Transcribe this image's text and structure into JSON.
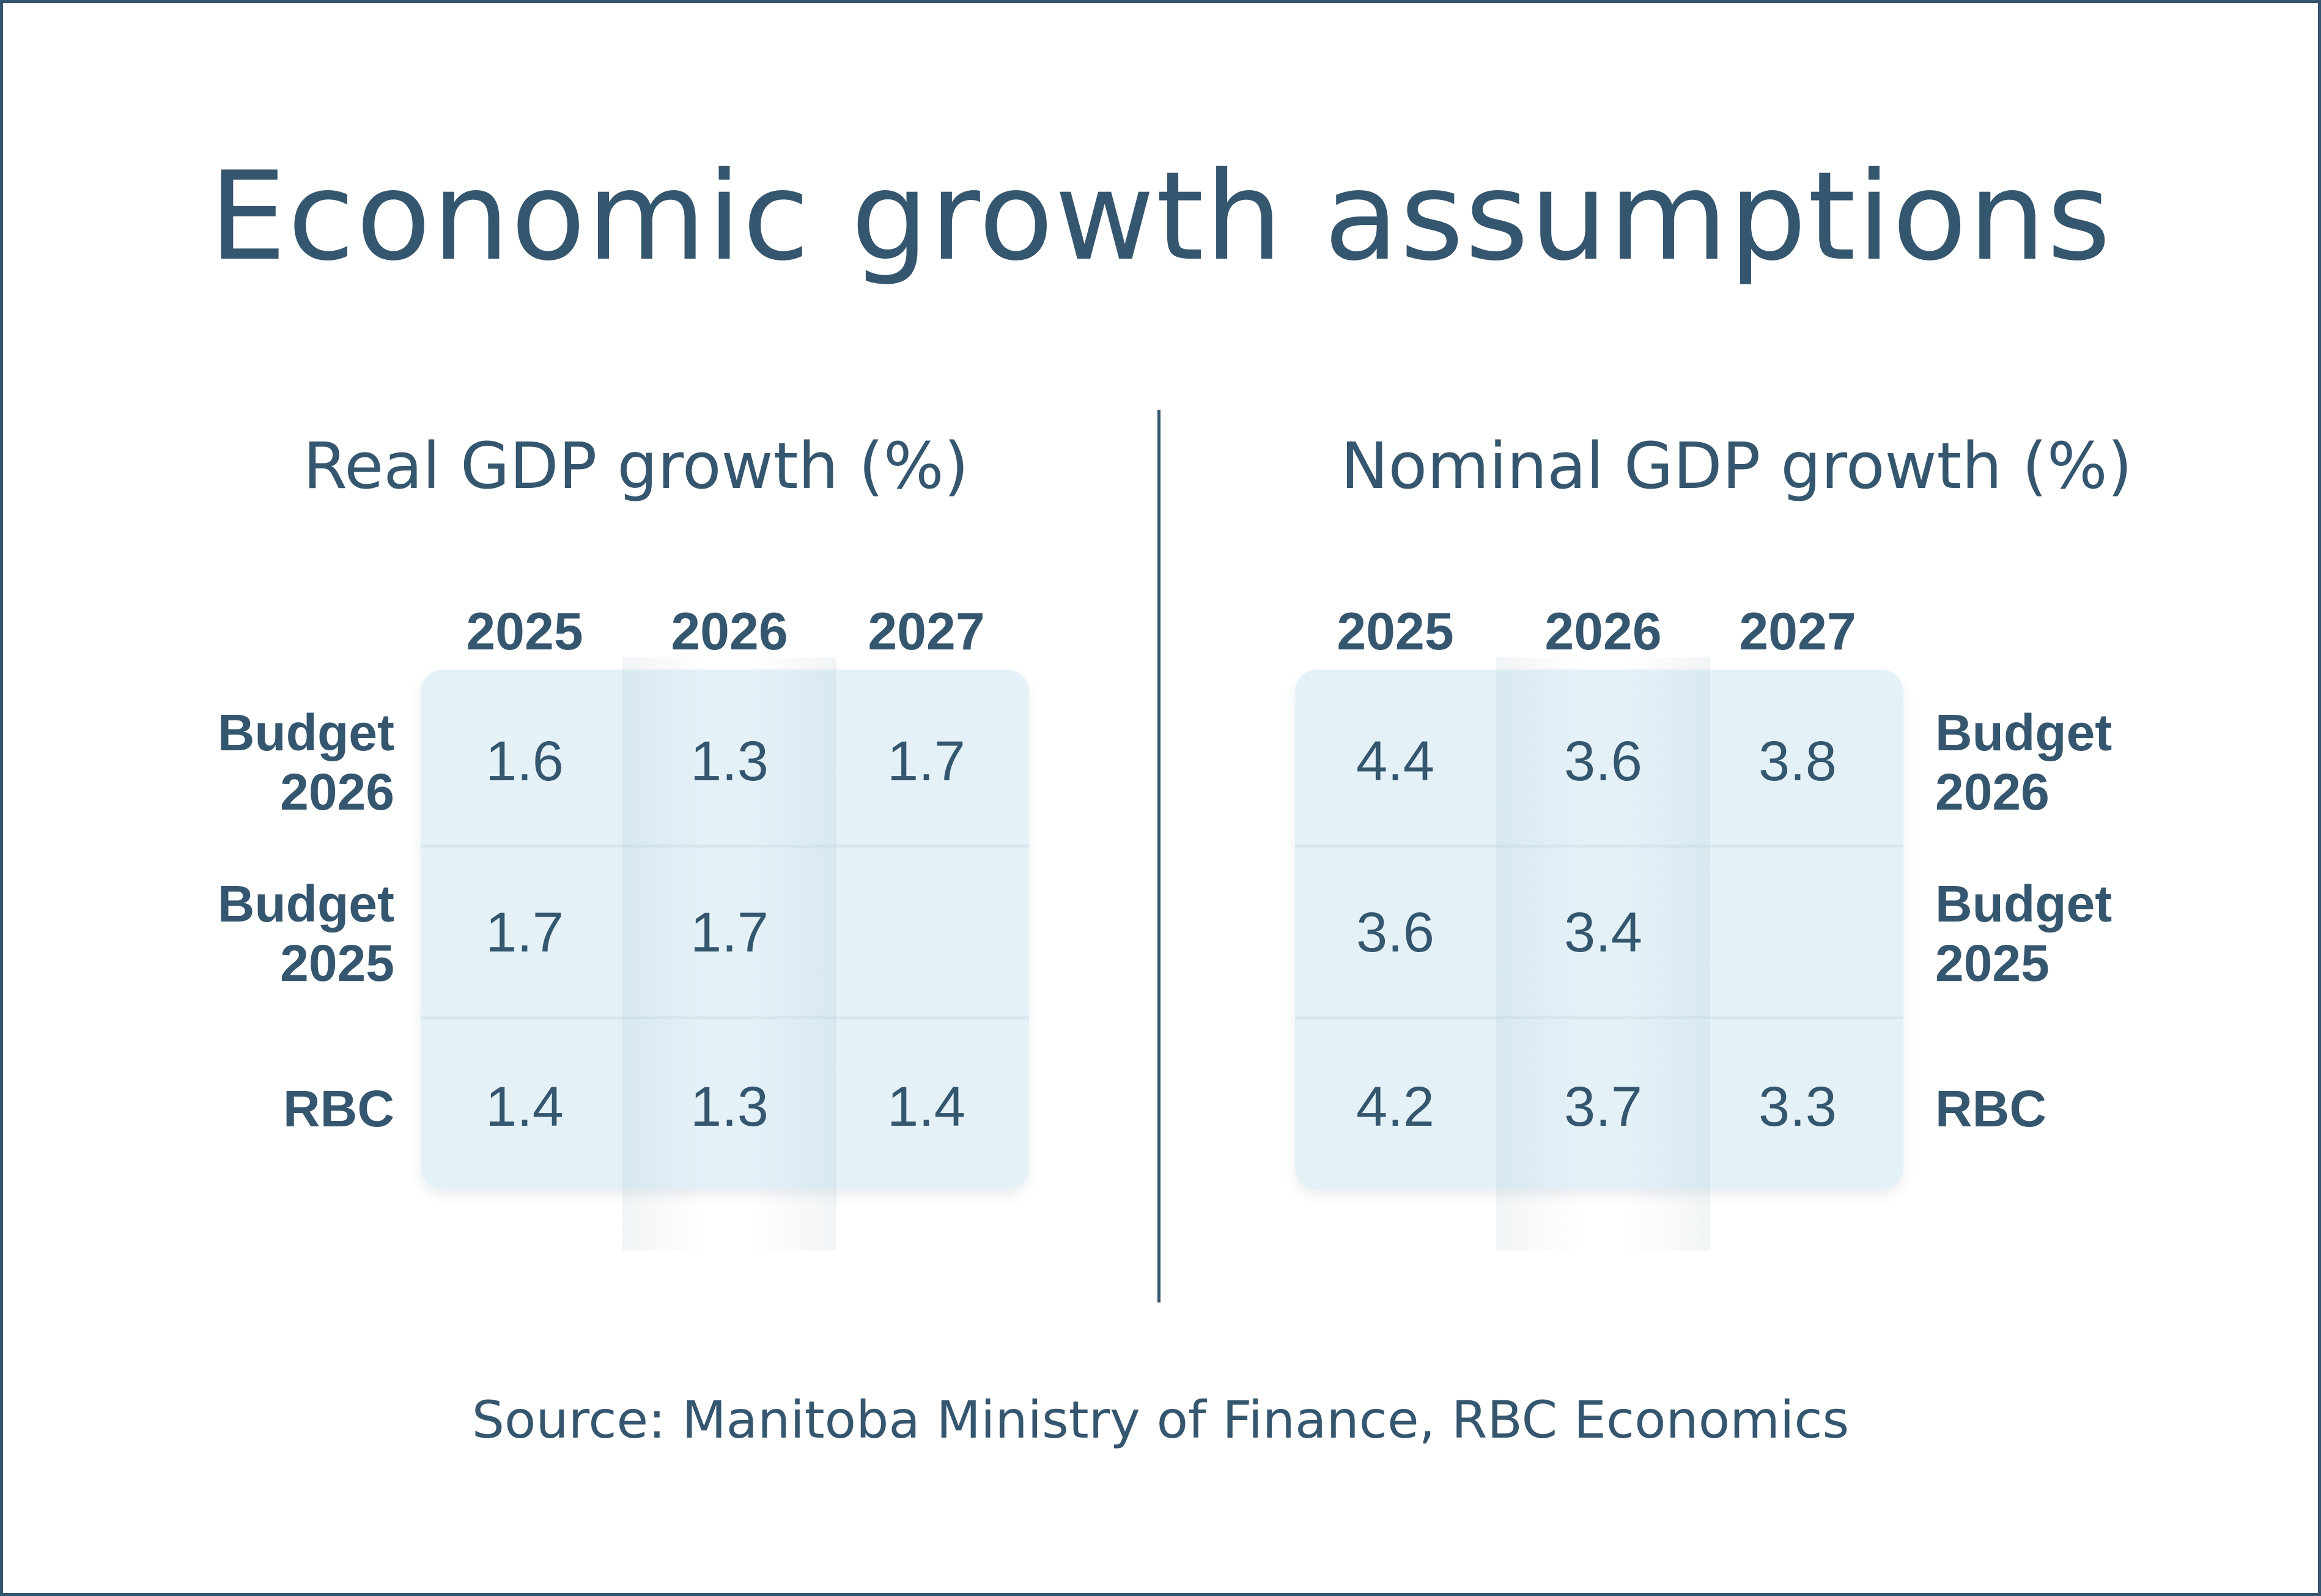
{
  "title": "Economic growth assumptions",
  "source": "Source: Manitoba Ministry of Finance, RBC Economics",
  "colors": {
    "primary": "#35566f",
    "cell_bg": "#e4f2f8",
    "background": "#ffffff"
  },
  "chart_data": [
    {
      "type": "table",
      "title": "Real GDP growth (%)",
      "columns": [
        "2025",
        "2026",
        "2027"
      ],
      "rows": [
        {
          "label_line1": "Budget",
          "label_line2": "2026",
          "values": [
            "1.6",
            "1.3",
            "1.7"
          ]
        },
        {
          "label_line1": "Budget",
          "label_line2": "2025",
          "values": [
            "1.7",
            "1.7",
            ""
          ]
        },
        {
          "label_line1": "RBC",
          "label_line2": "",
          "values": [
            "1.4",
            "1.3",
            "1.4"
          ]
        }
      ]
    },
    {
      "type": "table",
      "title": "Nominal GDP growth (%)",
      "columns": [
        "2025",
        "2026",
        "2027"
      ],
      "rows": [
        {
          "label_line1": "Budget",
          "label_line2": "2026",
          "values": [
            "4.4",
            "3.6",
            "3.8"
          ]
        },
        {
          "label_line1": "Budget",
          "label_line2": "2025",
          "values": [
            "3.6",
            "3.4",
            ""
          ]
        },
        {
          "label_line1": "RBC",
          "label_line2": "",
          "values": [
            "4.2",
            "3.7",
            "3.3"
          ]
        }
      ]
    }
  ]
}
